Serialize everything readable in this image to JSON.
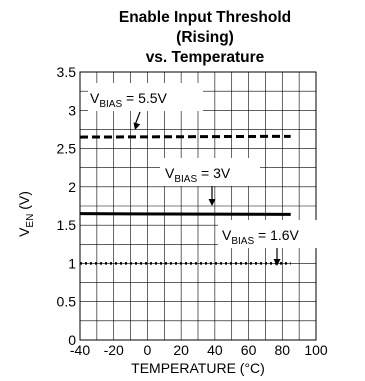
{
  "chart_data": {
    "type": "line",
    "title_lines": [
      "Enable Input Threshold",
      "(Rising)",
      "vs. Temperature"
    ],
    "xlabel": "TEMPERATURE (°C)",
    "ylabel_main": "V",
    "ylabel_sub": "EN",
    "ylabel_unit": " (V)",
    "xlim": [
      -40,
      100
    ],
    "ylim": [
      0,
      3.5
    ],
    "xticks": [
      -40,
      -20,
      0,
      20,
      40,
      60,
      80,
      100
    ],
    "yticks": [
      0,
      0.5,
      1,
      1.5,
      2,
      2.5,
      3,
      3.5
    ],
    "xtick_labels": [
      "-40",
      "-20",
      "0",
      "20",
      "40",
      "60",
      "80",
      "100"
    ],
    "ytick_labels": [
      "0",
      "0.5",
      "1",
      "1.5",
      "2",
      "2.5",
      "3",
      "3.5"
    ],
    "grid": true,
    "series": [
      {
        "name": "VBIAS = 5.5V",
        "label_main": "V",
        "label_sub": "BIAS",
        "label_rest": " = 5.5V",
        "style": "dashed",
        "x": [
          -40,
          85
        ],
        "y": [
          2.65,
          2.66
        ]
      },
      {
        "name": "VBIAS = 3V",
        "label_main": "V",
        "label_sub": "BIAS",
        "label_rest": " = 3V",
        "style": "solid",
        "x": [
          -40,
          85
        ],
        "y": [
          1.65,
          1.64
        ]
      },
      {
        "name": "VBIAS = 1.6V",
        "label_main": "V",
        "label_sub": "BIAS",
        "label_rest": " = 1.6V",
        "style": "dotted",
        "x": [
          -40,
          85
        ],
        "y": [
          1.0,
          1.0
        ]
      }
    ]
  }
}
